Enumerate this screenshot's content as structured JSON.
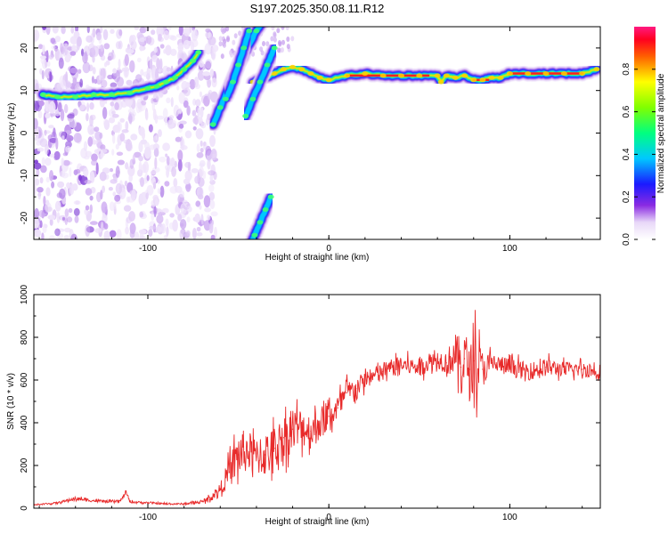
{
  "page": {
    "title": "S197.2025.350.08.11.R12"
  },
  "chart_data": [
    {
      "type": "heatmap",
      "title": "S197.2025.350.08.11.R12",
      "xlabel": "Height of straight line (km)",
      "ylabel": "Frequency (Hz)",
      "xlim": [
        -163,
        150
      ],
      "ylim": [
        -25,
        25
      ],
      "x_ticks": [
        -100,
        0,
        100
      ],
      "x_tick_labels": [
        "-100",
        "0",
        "100"
      ],
      "y_ticks": [
        -20,
        -10,
        0,
        10,
        20
      ],
      "y_tick_labels": [
        "-20",
        "-10",
        "0",
        "10",
        "20"
      ],
      "colorbar": {
        "label": "Normalized spectral amplitude",
        "range": [
          0,
          1
        ],
        "ticks": [
          0.0,
          0.2,
          0.4,
          0.6,
          0.8
        ],
        "tick_labels": [
          "0.0",
          "0.2",
          "0.4",
          "0.6",
          "0.8"
        ]
      },
      "ridges": [
        {
          "name": "main-ridge-left",
          "x": [
            -158,
            -150,
            -140,
            -130,
            -120,
            -110,
            -100,
            -95,
            -90,
            -85,
            -80,
            -75,
            -72
          ],
          "y": [
            9,
            8.5,
            8.5,
            9,
            9,
            9.5,
            10.5,
            11,
            12,
            13,
            15,
            17,
            19
          ]
        },
        {
          "name": "main-ridge-right",
          "x": [
            -42,
            -35,
            -30,
            -25,
            -20,
            -15,
            -10,
            -5,
            0,
            10,
            20,
            30,
            40,
            50,
            60,
            62,
            65,
            70,
            75,
            80,
            85,
            90,
            95,
            100,
            110,
            120,
            130,
            140,
            148
          ],
          "y": [
            12,
            13,
            14,
            15,
            15.5,
            15,
            14,
            13,
            12.5,
            13.5,
            14,
            13.5,
            13.5,
            13.5,
            13.5,
            12,
            13.5,
            13,
            13.5,
            12.5,
            12.5,
            13,
            13,
            14,
            14,
            14,
            14,
            14,
            15
          ]
        },
        {
          "name": "diagonal-branch-1",
          "x": [
            -64,
            -60,
            -55,
            -50,
            -45,
            -40,
            -35,
            -30
          ],
          "y": [
            2,
            6,
            11,
            16,
            20,
            24,
            27,
            30
          ]
        },
        {
          "name": "diagonal-branch-2",
          "x": [
            -57,
            -53,
            -50,
            -47,
            -44
          ],
          "y": [
            8,
            12,
            16,
            20,
            24
          ]
        },
        {
          "name": "diagonal-branch-3",
          "x": [
            -46,
            -42,
            -38,
            -34,
            -30
          ],
          "y": [
            4,
            8,
            12,
            16,
            20
          ]
        },
        {
          "name": "lower-branch",
          "x": [
            -46,
            -44,
            -41,
            -38,
            -35,
            -32
          ],
          "y": [
            -30,
            -27,
            -24,
            -21,
            -18,
            -15
          ]
        }
      ]
    },
    {
      "type": "line",
      "xlabel": "Height of straight line (km)",
      "ylabel": "SNR (10 * v/v)",
      "xlim": [
        -163,
        150
      ],
      "ylim": [
        0,
        1000
      ],
      "x_ticks": [
        -100,
        0,
        100
      ],
      "x_tick_labels": [
        "-100",
        "0",
        "100"
      ],
      "y_ticks": [
        0,
        200,
        400,
        600,
        800,
        1000
      ],
      "y_tick_labels": [
        "0",
        "200",
        "400",
        "600",
        "800",
        "1000"
      ],
      "series": [
        {
          "name": "SNR",
          "color": "#e82a2a",
          "x": [
            -163,
            -150,
            -140,
            -130,
            -120,
            -115,
            -112,
            -110,
            -100,
            -90,
            -80,
            -75,
            -70,
            -65,
            -60,
            -55,
            -50,
            -45,
            -40,
            -35,
            -30,
            -25,
            -20,
            -15,
            -10,
            -5,
            0,
            5,
            10,
            15,
            20,
            25,
            30,
            35,
            40,
            50,
            60,
            65,
            70,
            73,
            75,
            78,
            80,
            85,
            90,
            100,
            110,
            120,
            130,
            140,
            150
          ],
          "y": [
            15,
            25,
            45,
            35,
            30,
            35,
            75,
            30,
            25,
            20,
            20,
            25,
            30,
            50,
            90,
            170,
            250,
            270,
            240,
            250,
            280,
            330,
            370,
            380,
            360,
            400,
            430,
            470,
            540,
            560,
            600,
            620,
            640,
            660,
            670,
            660,
            700,
            680,
            720,
            660,
            700,
            650,
            690,
            650,
            680,
            660,
            640,
            660,
            650,
            650,
            640
          ],
          "noise": [
            4,
            6,
            12,
            10,
            8,
            8,
            10,
            8,
            6,
            6,
            6,
            8,
            10,
            20,
            40,
            100,
            160,
            140,
            120,
            150,
            150,
            150,
            150,
            130,
            120,
            110,
            100,
            90,
            80,
            70,
            60,
            60,
            60,
            60,
            60,
            60,
            60,
            80,
            140,
            200,
            220,
            120,
            260,
            120,
            70,
            60,
            60,
            60,
            50,
            50,
            50
          ]
        }
      ]
    }
  ]
}
